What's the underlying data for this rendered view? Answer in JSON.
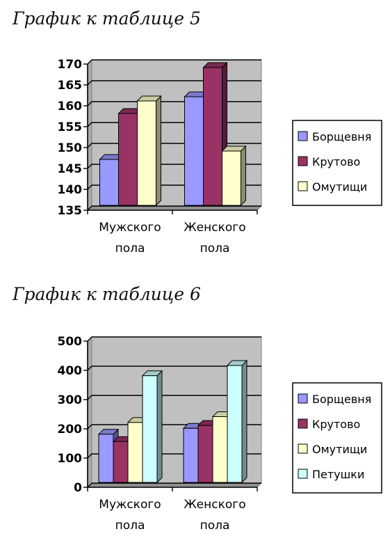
{
  "chart_data": [
    {
      "type": "bar",
      "title": "График к таблице 5",
      "categories": [
        "Мужского\nпола",
        "Женского\nпола"
      ],
      "series": [
        {
          "name": "Борщевня",
          "values": [
            146,
            161
          ],
          "color": "#9999ff"
        },
        {
          "name": "Крутово",
          "values": [
            157,
            168
          ],
          "color": "#993366"
        },
        {
          "name": "Омутищи",
          "values": [
            160,
            148
          ],
          "color": "#ffffcc"
        }
      ],
      "ylim": [
        135,
        170
      ],
      "yticks": [
        135,
        140,
        145,
        150,
        155,
        160,
        165,
        170
      ],
      "grid": true,
      "legend": "right"
    },
    {
      "type": "bar",
      "title": "График к таблице 6",
      "categories": [
        "Мужского\nпола",
        "Женского\nпола"
      ],
      "series": [
        {
          "name": "Борщевня",
          "values": [
            165,
            185
          ],
          "color": "#9999ff"
        },
        {
          "name": "Крутово",
          "values": [
            140,
            195
          ],
          "color": "#993366"
        },
        {
          "name": "Омутищи",
          "values": [
            205,
            225
          ],
          "color": "#ffffcc"
        },
        {
          "name": "Петушки",
          "values": [
            365,
            400
          ],
          "color": "#ccffff"
        }
      ],
      "ylim": [
        0,
        500
      ],
      "yticks": [
        0,
        100,
        200,
        300,
        400,
        500
      ],
      "grid": true,
      "legend": "right"
    }
  ]
}
